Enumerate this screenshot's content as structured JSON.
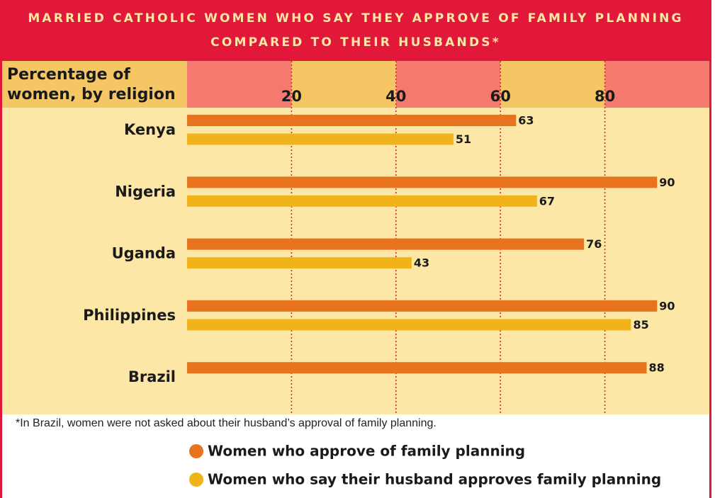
{
  "chart_data": {
    "type": "bar",
    "orientation": "horizontal",
    "title": [
      "MARRIED CATHOLIC WOMEN WHO SAY THEY APPROVE OF FAMILY PLANNING",
      "COMPARED TO THEIR HUSBANDS*"
    ],
    "ylabel": [
      "Percentage of",
      "women, by religion"
    ],
    "categories": [
      "Kenya",
      "Nigeria",
      "Uganda",
      "Philippines",
      "Brazil"
    ],
    "series": [
      {
        "name": "Women who approve of family planning",
        "color": "#e8731e",
        "values": [
          63,
          90,
          76,
          90,
          88
        ]
      },
      {
        "name": "Women who say their husband approves family planning",
        "color": "#f0b31a",
        "values": [
          51,
          67,
          43,
          85,
          null
        ]
      }
    ],
    "xlim": [
      0,
      100
    ],
    "xticks": [
      20,
      40,
      60,
      80
    ],
    "grid": true,
    "footnote": "*In Brazil, women were not asked about their husband’s approval of family planning."
  }
}
